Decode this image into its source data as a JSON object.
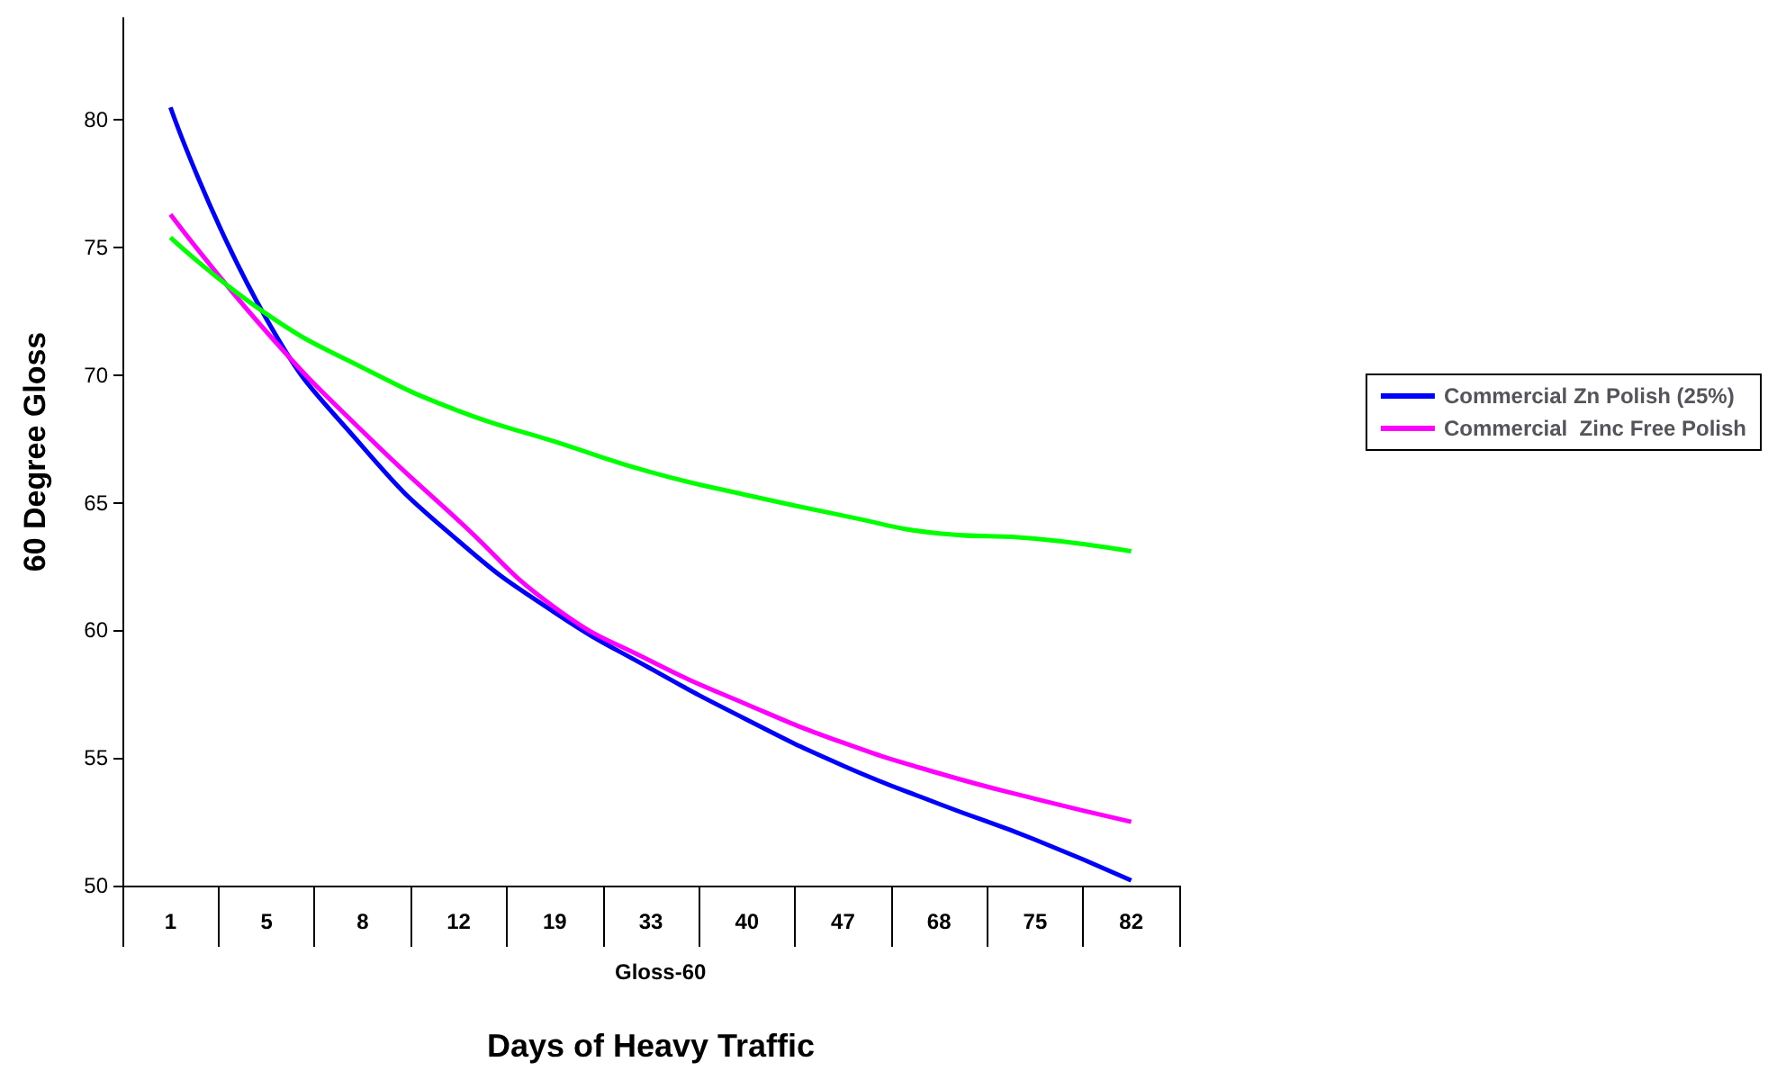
{
  "chart_data": {
    "type": "line",
    "ylabel": "60 Degree Gloss",
    "xlabel": "Days of Heavy Traffic",
    "annotations": [
      "Gloss-60"
    ],
    "categories": [
      "1",
      "5",
      "8",
      "12",
      "19",
      "33",
      "40",
      "47",
      "68",
      "75",
      "82"
    ],
    "ylim": [
      50,
      84
    ],
    "yticks": [
      50,
      55,
      60,
      65,
      70,
      75,
      80
    ],
    "grid": false,
    "legend": "right",
    "marker": "none",
    "line_style": "solid",
    "series": [
      {
        "name": "Commercial Zn Polish (25%)",
        "color": "#0000ff",
        "values": [
          80.5,
          72.2,
          67.2,
          63.5,
          60.7,
          58.5,
          56.5,
          54.7,
          53.2,
          51.8,
          50.2
        ]
      },
      {
        "name": "Commercial  Zinc Free Polish",
        "color": "#ff00ff",
        "values": [
          76.3,
          71.7,
          67.8,
          64.3,
          60.9,
          58.8,
          57.1,
          55.6,
          54.4,
          53.4,
          52.5
        ]
      },
      {
        "color": "#00ff00",
        "values": [
          75.4,
          72.4,
          70.3,
          68.6,
          67.4,
          66.2,
          65.3,
          64.5,
          63.8,
          63.6,
          63.1
        ]
      }
    ]
  }
}
